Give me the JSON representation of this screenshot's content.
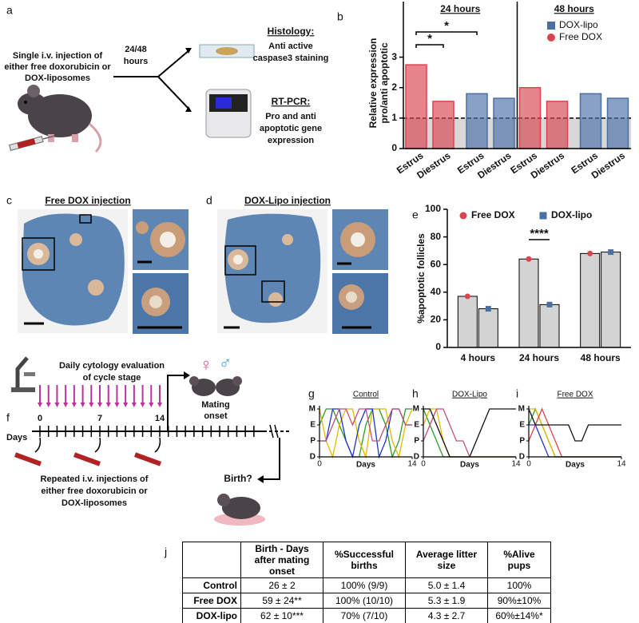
{
  "panel_labels": [
    "a",
    "b",
    "c",
    "d",
    "e",
    "f",
    "g",
    "h",
    "i",
    "j"
  ],
  "panel_a": {
    "injection": [
      "Single i.v. injection of",
      "either free doxorubicin or",
      "DOX-liposomes"
    ],
    "time": [
      "24/48",
      "hours"
    ],
    "histology_title": "Histology:",
    "histology_text": [
      "Anti active",
      "caspase3 staining"
    ],
    "rtpcr_title": "RT-PCR:",
    "rtpcr_text": [
      "Pro and anti",
      "apoptotic gene",
      "expression"
    ]
  },
  "panel_c": {
    "title": "Free DOX injection"
  },
  "panel_d": {
    "title": "DOX-Lipo injection"
  },
  "panel_f": {
    "cytology": [
      "Daily cytology evaluation",
      "of cycle stage"
    ],
    "days_label": "Days",
    "day_ticks": [
      "0",
      "7",
      "14"
    ],
    "female": "♀",
    "male": "♂",
    "mating": [
      "Mating",
      "onset"
    ],
    "injections": [
      "Repeated i.v. injections of",
      "either free doxorubicin or",
      "DOX-liposomes"
    ],
    "birth": "Birth?"
  },
  "chart_data": [
    {
      "type": "bar",
      "ylabel": [
        "Relative expression",
        "pro/anti apoptotic"
      ],
      "groups": [
        "24 hours",
        "48 hours"
      ],
      "categories": [
        "Estrus",
        "Diestrus",
        "Estrus",
        "Diestrus",
        "Estrus",
        "Diestrus",
        "Estrus",
        "Diestrus"
      ],
      "series": [
        {
          "name": "DOX-lipo",
          "color": "#4a6fa5",
          "marker": "square",
          "values": [
            null,
            null,
            1.8,
            1.65,
            null,
            null,
            1.8,
            1.65
          ]
        },
        {
          "name": "Free DOX",
          "color": "#d9444f",
          "marker": "circle",
          "values": [
            2.75,
            1.55,
            null,
            null,
            2.0,
            1.55,
            null,
            null
          ]
        }
      ],
      "ylim": [
        0,
        4.3
      ],
      "yticks": [
        0,
        1,
        2,
        3
      ],
      "hline": 1,
      "annotations": [
        "*",
        "*"
      ],
      "legend": "top-right"
    },
    {
      "type": "bar",
      "ylabel": [
        "%apoptotic follicles"
      ],
      "categories": [
        "4 hours",
        "24 hours",
        "48 hours"
      ],
      "bar_color": "#d3d3d3",
      "series": [
        {
          "name": "Free DOX",
          "color": "#d9444f",
          "marker": "circle",
          "values": [
            37,
            64,
            68
          ]
        },
        {
          "name": "DOX-lipo",
          "color": "#4a6fa5",
          "marker": "square",
          "values": [
            28,
            31,
            69
          ]
        }
      ],
      "ylim": [
        0,
        100
      ],
      "yticks": [
        0,
        20,
        40,
        60,
        80,
        100
      ],
      "annotations": [
        "****"
      ],
      "legend": "top"
    },
    {
      "type": "line",
      "title": "Control",
      "xlabel": "Days",
      "x": [
        0,
        1,
        2,
        3,
        4,
        5,
        6,
        7,
        8,
        9,
        10,
        11,
        12,
        13,
        14
      ],
      "xlim": [
        0,
        14
      ],
      "xticks": [
        0,
        14
      ],
      "ylim": [
        0,
        3
      ],
      "yticks": [
        {
          "value": 3,
          "label": "M"
        },
        {
          "value": 2,
          "label": "E"
        },
        {
          "value": 1,
          "label": "P"
        },
        {
          "value": 0,
          "label": "D"
        }
      ],
      "series": [
        {
          "color": "#2a9d2a",
          "values": [
            2,
            3,
            3,
            2,
            1,
            0,
            0,
            2,
            3,
            3,
            2,
            0,
            1,
            3,
            3
          ]
        },
        {
          "color": "#e6b800",
          "values": [
            3,
            1,
            0,
            2,
            3,
            3,
            1,
            0,
            3,
            3,
            3,
            1,
            0,
            2,
            3
          ]
        },
        {
          "color": "#2035c8",
          "values": [
            1,
            1,
            3,
            3,
            1,
            0,
            2,
            3,
            3,
            0,
            1,
            3,
            3,
            2,
            2
          ]
        },
        {
          "color": "#c0507a",
          "values": [
            1,
            1,
            2,
            3,
            3,
            2,
            3,
            3,
            1,
            1,
            2,
            3,
            3,
            2,
            2
          ]
        }
      ]
    },
    {
      "type": "line",
      "title": "DOX-Lipo",
      "xlabel": "Days",
      "x": [
        0,
        1,
        2,
        3,
        4,
        5,
        6,
        7,
        8,
        9,
        10,
        11,
        12,
        13,
        14
      ],
      "xlim": [
        0,
        14
      ],
      "xticks": [
        0,
        14
      ],
      "ylim": [
        0,
        3
      ],
      "yticks": [
        {
          "value": 3,
          "label": "M"
        },
        {
          "value": 2,
          "label": "E"
        },
        {
          "value": 1,
          "label": "P"
        },
        {
          "value": 0,
          "label": "D"
        }
      ],
      "series": [
        {
          "color": "#2a9d2a",
          "values": [
            3,
            2,
            1,
            0,
            0,
            0,
            0,
            0,
            0,
            0,
            0,
            0,
            0,
            0,
            0
          ]
        },
        {
          "color": "#e6b800",
          "values": [
            2,
            3,
            3,
            1,
            0,
            0,
            0,
            0,
            0,
            0,
            0,
            0,
            0,
            0,
            0
          ]
        },
        {
          "color": "#c0507a",
          "values": [
            1,
            2,
            3,
            3,
            2,
            1,
            1,
            0,
            0,
            0,
            0,
            0,
            0,
            0,
            0
          ]
        },
        {
          "color": "#111111",
          "values": [
            3,
            3,
            2,
            1,
            0,
            0,
            0,
            0,
            1,
            2,
            3,
            3,
            3,
            3,
            3
          ]
        }
      ]
    },
    {
      "type": "line",
      "title": "Free DOX",
      "xlabel": "Days",
      "x": [
        0,
        1,
        2,
        3,
        4,
        5,
        6,
        7,
        8,
        9,
        10,
        11,
        12,
        13,
        14
      ],
      "xlim": [
        0,
        14
      ],
      "xticks": [
        0,
        14
      ],
      "ylim": [
        0,
        3
      ],
      "yticks": [
        {
          "value": 3,
          "label": "M"
        },
        {
          "value": 2,
          "label": "E"
        },
        {
          "value": 1,
          "label": "P"
        },
        {
          "value": 0,
          "label": "D"
        }
      ],
      "series": [
        {
          "color": "#2a9d2a",
          "values": [
            2,
            3,
            2,
            1,
            0,
            0,
            0,
            0,
            0,
            0,
            0,
            0,
            0,
            0,
            0
          ]
        },
        {
          "color": "#e6b800",
          "values": [
            3,
            3,
            2,
            1,
            0,
            0,
            0,
            0,
            0,
            0,
            0,
            0,
            0,
            0,
            0
          ]
        },
        {
          "color": "#2035c8",
          "values": [
            2,
            2,
            1,
            0,
            0,
            0,
            0,
            0,
            0,
            0,
            0,
            0,
            0,
            0,
            0
          ]
        },
        {
          "color": "#d9444f",
          "values": [
            1,
            2,
            3,
            2,
            1,
            0,
            0,
            0,
            0,
            0,
            0,
            0,
            0,
            0,
            0
          ]
        },
        {
          "color": "#111111",
          "values": [
            3,
            2,
            2,
            2,
            2,
            2,
            2,
            1,
            1,
            2,
            2,
            2,
            2,
            2,
            2
          ]
        }
      ]
    }
  ],
  "table": {
    "header": [
      "Birth - Days after mating onset",
      "%Successful births",
      "Average litter size",
      "%Alive pups"
    ],
    "rows": [
      [
        "Control",
        "26 ± 2",
        "100% (9/9)",
        "5.0 ± 1.4",
        "100%"
      ],
      [
        "Free DOX",
        "59 ± 24**",
        "100% (10/10)",
        "5.3 ± 1.9",
        "90%±10%"
      ],
      [
        "DOX-lipo",
        "62 ± 10***",
        "70% (7/10)",
        "4.3 ± 2.7",
        "60%±14%*"
      ]
    ]
  }
}
